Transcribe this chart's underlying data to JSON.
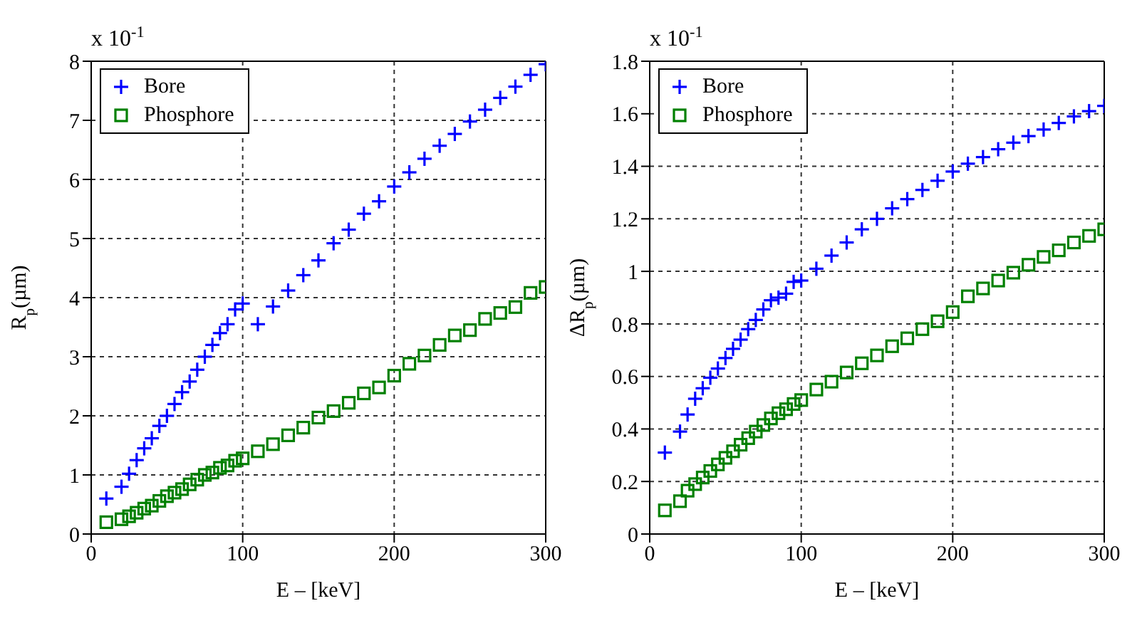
{
  "chart_data": [
    {
      "type": "scatter",
      "xlabel": "E – [keV]",
      "ylabel": "R$_{p}$(µm)",
      "annotations": [
        "x 10$^{-1}$"
      ],
      "xlim": [
        0,
        300
      ],
      "xticks": [
        0,
        100,
        200,
        300
      ],
      "ylim": [
        0,
        8
      ],
      "yticks": [
        0,
        1,
        2,
        3,
        4,
        5,
        6,
        7,
        8
      ],
      "grid": true,
      "legend": "top left",
      "x": [
        10,
        20,
        25,
        30,
        35,
        40,
        45,
        50,
        55,
        60,
        65,
        70,
        75,
        80,
        85,
        90,
        95,
        100,
        110,
        120,
        130,
        140,
        150,
        160,
        170,
        180,
        190,
        200,
        210,
        220,
        230,
        240,
        250,
        260,
        270,
        280,
        290,
        300
      ],
      "series": [
        {
          "name": "Bore",
          "color": "#0000ff",
          "marker": "cross",
          "values": [
            0.6,
            0.8,
            1.02,
            1.25,
            1.45,
            1.62,
            1.83,
            2.0,
            2.2,
            2.4,
            2.58,
            2.78,
            3.0,
            3.2,
            3.4,
            3.55,
            3.8,
            3.9,
            3.55,
            3.85,
            4.12,
            4.38,
            4.63,
            4.92,
            5.15,
            5.42,
            5.63,
            5.88,
            6.12,
            6.35,
            6.57,
            6.77,
            6.98,
            7.18,
            7.38,
            7.57,
            7.77,
            7.95
          ]
        },
        {
          "name": "Phosphore",
          "color": "#008000",
          "marker": "square",
          "values": [
            0.2,
            0.25,
            0.3,
            0.36,
            0.43,
            0.48,
            0.56,
            0.64,
            0.7,
            0.76,
            0.84,
            0.92,
            1.0,
            1.04,
            1.12,
            1.16,
            1.24,
            1.28,
            1.4,
            1.52,
            1.67,
            1.8,
            1.97,
            2.08,
            2.22,
            2.38,
            2.48,
            2.68,
            2.88,
            3.02,
            3.2,
            3.36,
            3.45,
            3.64,
            3.74,
            3.84,
            4.08,
            4.18
          ]
        }
      ]
    },
    {
      "type": "scatter",
      "xlabel": "E – [keV]",
      "ylabel": "ΔR$_{p}$(µm)",
      "annotations": [
        "x 10$^{-1}$"
      ],
      "xlim": [
        0,
        300
      ],
      "xticks": [
        0,
        100,
        200,
        300
      ],
      "ylim": [
        0,
        1.8
      ],
      "yticks": [
        0,
        0.2,
        0.4,
        0.6,
        0.8,
        1,
        1.2,
        1.4,
        1.6,
        1.8
      ],
      "grid": true,
      "legend": "top left",
      "x": [
        10,
        20,
        25,
        30,
        35,
        40,
        45,
        50,
        55,
        60,
        65,
        70,
        75,
        80,
        85,
        90,
        95,
        100,
        110,
        120,
        130,
        140,
        150,
        160,
        170,
        180,
        190,
        200,
        210,
        220,
        230,
        240,
        250,
        260,
        270,
        280,
        290,
        300
      ],
      "series": [
        {
          "name": "Bore",
          "color": "#0000ff",
          "marker": "cross",
          "values": [
            0.31,
            0.39,
            0.455,
            0.515,
            0.555,
            0.595,
            0.63,
            0.67,
            0.705,
            0.74,
            0.78,
            0.815,
            0.855,
            0.89,
            0.9,
            0.915,
            0.96,
            0.965,
            1.01,
            1.06,
            1.11,
            1.16,
            1.2,
            1.24,
            1.275,
            1.31,
            1.345,
            1.38,
            1.41,
            1.435,
            1.465,
            1.49,
            1.515,
            1.54,
            1.565,
            1.59,
            1.61,
            1.63
          ]
        },
        {
          "name": "Phosphore",
          "color": "#008000",
          "marker": "square",
          "values": [
            0.09,
            0.125,
            0.165,
            0.19,
            0.215,
            0.24,
            0.265,
            0.29,
            0.315,
            0.34,
            0.365,
            0.39,
            0.415,
            0.44,
            0.46,
            0.475,
            0.495,
            0.51,
            0.55,
            0.58,
            0.615,
            0.65,
            0.68,
            0.715,
            0.745,
            0.78,
            0.81,
            0.845,
            0.905,
            0.935,
            0.965,
            0.995,
            1.025,
            1.055,
            1.08,
            1.11,
            1.135,
            1.16
          ]
        }
      ]
    }
  ]
}
